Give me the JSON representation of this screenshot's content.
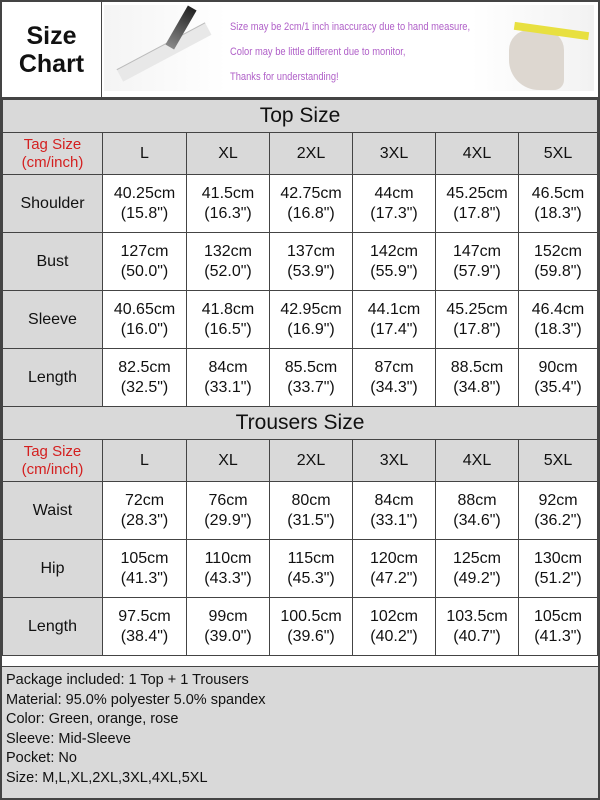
{
  "header": {
    "title_line1": "Size",
    "title_line2": "Chart",
    "notice": [
      "Size may be 2cm/1 inch inaccuracy due to hand measure,",
      "Color may be little different due to monitor,",
      "Thanks for understanding!"
    ]
  },
  "top": {
    "title": "Top  Size",
    "tag_label_1": "Tag Size",
    "tag_label_2": "(cm/inch)",
    "sizes": [
      "L",
      "XL",
      "2XL",
      "3XL",
      "4XL",
      "5XL"
    ],
    "rows": [
      {
        "label": "Shoulder",
        "values": [
          [
            "40.25cm",
            "(15.8\")"
          ],
          [
            "41.5cm",
            "(16.3\")"
          ],
          [
            "42.75cm",
            "(16.8\")"
          ],
          [
            "44cm",
            "(17.3\")"
          ],
          [
            "45.25cm",
            "(17.8\")"
          ],
          [
            "46.5cm",
            "(18.3\")"
          ]
        ]
      },
      {
        "label": "Bust",
        "values": [
          [
            "127cm",
            "(50.0\")"
          ],
          [
            "132cm",
            "(52.0\")"
          ],
          [
            "137cm",
            "(53.9\")"
          ],
          [
            "142cm",
            "(55.9\")"
          ],
          [
            "147cm",
            "(57.9\")"
          ],
          [
            "152cm",
            "(59.8\")"
          ]
        ]
      },
      {
        "label": "Sleeve",
        "values": [
          [
            "40.65cm",
            "(16.0\")"
          ],
          [
            "41.8cm",
            "(16.5\")"
          ],
          [
            "42.95cm",
            "(16.9\")"
          ],
          [
            "44.1cm",
            "(17.4\")"
          ],
          [
            "45.25cm",
            "(17.8\")"
          ],
          [
            "46.4cm",
            "(18.3\")"
          ]
        ]
      },
      {
        "label": "Length",
        "values": [
          [
            "82.5cm",
            "(32.5\")"
          ],
          [
            "84cm",
            "(33.1\")"
          ],
          [
            "85.5cm",
            "(33.7\")"
          ],
          [
            "87cm",
            "(34.3\")"
          ],
          [
            "88.5cm",
            "(34.8\")"
          ],
          [
            "90cm",
            "(35.4\")"
          ]
        ]
      }
    ]
  },
  "trousers": {
    "title": "Trousers  Size",
    "tag_label_1": "Tag Size",
    "tag_label_2": "(cm/inch)",
    "sizes": [
      "L",
      "XL",
      "2XL",
      "3XL",
      "4XL",
      "5XL"
    ],
    "rows": [
      {
        "label": "Waist",
        "values": [
          [
            "72cm",
            "(28.3\")"
          ],
          [
            "76cm",
            "(29.9\")"
          ],
          [
            "80cm",
            "(31.5\")"
          ],
          [
            "84cm",
            "(33.1\")"
          ],
          [
            "88cm",
            "(34.6\")"
          ],
          [
            "92cm",
            "(36.2\")"
          ]
        ]
      },
      {
        "label": "Hip",
        "values": [
          [
            "105cm",
            "(41.3\")"
          ],
          [
            "110cm",
            "(43.3\")"
          ],
          [
            "115cm",
            "(45.3\")"
          ],
          [
            "120cm",
            "(47.2\")"
          ],
          [
            "125cm",
            "(49.2\")"
          ],
          [
            "130cm",
            "(51.2\")"
          ]
        ]
      },
      {
        "label": "Length",
        "values": [
          [
            "97.5cm",
            "(38.4\")"
          ],
          [
            "99cm",
            "(39.0\")"
          ],
          [
            "100.5cm",
            "(39.6\")"
          ],
          [
            "102cm",
            "(40.2\")"
          ],
          [
            "103.5cm",
            "(40.7\")"
          ],
          [
            "105cm",
            "(41.3\")"
          ]
        ]
      }
    ]
  },
  "notes": [
    "Package included: 1  Top + 1 Trousers",
    "Material: 95.0% polyester 5.0% spandex",
    "Color: Green, orange, rose",
    "Sleeve: Mid-Sleeve",
    "Pocket: No",
    "Size: M,L,XL,2XL,3XL,4XL,5XL"
  ]
}
